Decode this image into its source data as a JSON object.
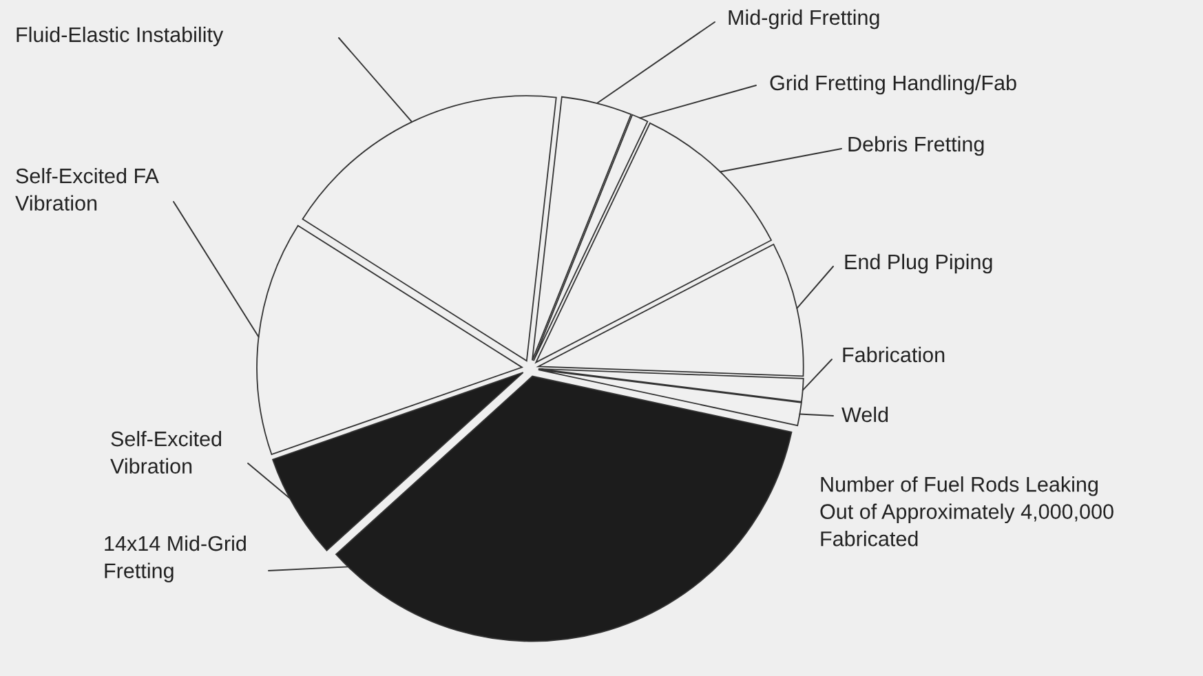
{
  "chart_data": {
    "type": "pie",
    "categories": [
      "Mid-grid Fretting",
      "Grid Fretting Handling/Fab",
      "Debris Fretting",
      "End Plug Piping",
      "Fabrication",
      "Weld",
      "14x14 Mid-Grid\nFretting",
      "Self-Excited\nVibration",
      "Self-Excited FA\nVibration",
      "Fluid-Elastic Instability"
    ],
    "values": [
      4.3,
      1.0,
      10.3,
      8.2,
      1.4,
      1.4,
      34.9,
      6.4,
      14.3,
      17.8
    ],
    "colors": [
      "#f0f0f0",
      "#f0f0f0",
      "#f0f0f0",
      "#f0f0f0",
      "#f0f0f0",
      "#f0f0f0",
      "#1c1c1c",
      "#1c1c1c",
      "#f0f0f0",
      "#f0f0f0"
    ],
    "annotations": [
      "Number of Fuel Rods Leaking\nOut of Approximately 4,000,000\nFabricated"
    ]
  }
}
